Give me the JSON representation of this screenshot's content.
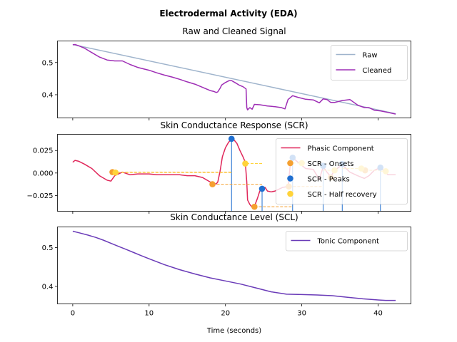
{
  "suptitle": "Electrodermal Activity (EDA)",
  "chart_data": [
    {
      "type": "line",
      "title": "Raw and Cleaned Signal",
      "xlabel": "",
      "ylabel": "",
      "xlim": [
        -2,
        44.3
      ],
      "ylim": [
        0.328,
        0.567
      ],
      "xticks": [
        0,
        10,
        20,
        30,
        40
      ],
      "show_xtick_labels": false,
      "yticks": [
        0.4,
        0.5
      ],
      "ytick_labels": [
        "0.4",
        "0.5"
      ],
      "legend": {
        "placement": "top-right",
        "entries": [
          "Raw",
          "Cleaned"
        ]
      },
      "series": [
        {
          "name": "Raw",
          "color": "#9fb4cc",
          "x": [
            0,
            42.3
          ],
          "y": [
            0.556,
            0.341
          ]
        },
        {
          "name": "Cleaned",
          "color": "#9E2DB5",
          "x": [
            0,
            0.3,
            0.8,
            1.5,
            2.5,
            3.5,
            4.5,
            5.5,
            6.5,
            7.5,
            8.5,
            10,
            11,
            12,
            13,
            14,
            15,
            16,
            17,
            18,
            18.5,
            18.8,
            19,
            19.3,
            19.5,
            20,
            20.5,
            20.8,
            21.3,
            21.8,
            22.3,
            22.7,
            22.8,
            22.9,
            23.2,
            23.5,
            23.8,
            24.5,
            25.5,
            26.5,
            27.3,
            27.8,
            28.2,
            28.8,
            29.5,
            30.5,
            31.5,
            32.3,
            32.8,
            33.3,
            33.8,
            34.3,
            35.3,
            36.3,
            37.3,
            38.2,
            38.8,
            39.5,
            40.3,
            41.3,
            42.3
          ],
          "y": [
            0.555,
            0.556,
            0.552,
            0.545,
            0.531,
            0.517,
            0.508,
            0.505,
            0.505,
            0.494,
            0.485,
            0.476,
            0.468,
            0.461,
            0.455,
            0.448,
            0.44,
            0.433,
            0.423,
            0.413,
            0.41,
            0.407,
            0.409,
            0.42,
            0.43,
            0.438,
            0.444,
            0.444,
            0.437,
            0.43,
            0.425,
            0.418,
            0.36,
            0.353,
            0.36,
            0.355,
            0.37,
            0.369,
            0.365,
            0.363,
            0.36,
            0.356,
            0.385,
            0.397,
            0.392,
            0.386,
            0.384,
            0.375,
            0.387,
            0.385,
            0.376,
            0.376,
            0.382,
            0.385,
            0.368,
            0.36,
            0.36,
            0.352,
            0.35,
            0.345,
            0.34
          ]
        }
      ]
    },
    {
      "type": "line",
      "title": "Skin Conductance Response (SCR)",
      "xlabel": "",
      "ylabel": "",
      "xlim": [
        -2,
        44.3
      ],
      "ylim": [
        -0.0425,
        0.043
      ],
      "xticks": [
        0,
        10,
        20,
        30,
        40
      ],
      "show_xtick_labels": false,
      "yticks": [
        -0.025,
        0.0,
        0.025
      ],
      "ytick_labels": [
        "−0.025",
        "0.000",
        "0.025"
      ],
      "legend": {
        "placement": "top-right",
        "entries": [
          "Phasic Component",
          "SCR - Onsets",
          "SCR - Peaks",
          "SCR - Half recovery"
        ]
      },
      "series": [
        {
          "name": "Phasic Component",
          "color": "#E0275A",
          "x": [
            0,
            0.3,
            0.8,
            1.5,
            2.5,
            3.5,
            4.5,
            5.0,
            5.5,
            6.5,
            7.5,
            8.5,
            10,
            11,
            12,
            13,
            14,
            15,
            16,
            17,
            18,
            18.5,
            18.8,
            19,
            19.3,
            19.6,
            20,
            20.4,
            20.8,
            21.1,
            21.5,
            21.9,
            22.3,
            22.6,
            22.8,
            22.9,
            23.2,
            23.5,
            23.8,
            24.2,
            24.5,
            24.8,
            25.2,
            25.5,
            26,
            26.5,
            27,
            27.5,
            28.2,
            28.5,
            28.8,
            29.5,
            30.5,
            31.5,
            32.3,
            32.8,
            33.3,
            33.8,
            34.3,
            35.3,
            36.3,
            37.3,
            38.2,
            38.8,
            39.5,
            40.3,
            41.3,
            42.3
          ],
          "y": [
            0.012,
            0.014,
            0.013,
            0.01,
            0.005,
            -0.003,
            -0.008,
            -0.009,
            -0.003,
            0.001,
            -0.002,
            -0.001,
            -0.001,
            -0.002,
            -0.002,
            -0.002,
            -0.002,
            -0.003,
            -0.003,
            -0.005,
            -0.01,
            -0.012,
            -0.012,
            -0.01,
            0.002,
            0.018,
            0.028,
            0.034,
            0.038,
            0.037,
            0.033,
            0.025,
            0.018,
            0.012,
            -0.01,
            -0.03,
            -0.035,
            -0.038,
            -0.037,
            -0.028,
            -0.02,
            -0.016,
            -0.016,
            -0.02,
            -0.021,
            -0.02,
            -0.018,
            -0.016,
            -0.015,
            0.01,
            0.017,
            0.012,
            0.005,
            0.004,
            -0.007,
            0.007,
            0.001,
            -0.004,
            0.003,
            0.009,
            0.001,
            -0.003,
            -0.006,
            -0.003,
            0.003,
            0.006,
            -0.002,
            -0.002
          ]
        }
      ],
      "onsets": {
        "name": "SCR - Onsets",
        "color": "#F5A030",
        "x": [
          5.2,
          18.3,
          23.8,
          28.3,
          33.8,
          38.3
        ],
        "y": [
          0.001,
          -0.0125,
          -0.0375,
          -0.015,
          -0.005,
          0.003
        ]
      },
      "peaks": {
        "name": "SCR - Peaks",
        "color": "#1F6FD0",
        "x": [
          20.8,
          24.8,
          28.8,
          32.8,
          35.3,
          40.3
        ],
        "y": [
          0.038,
          -0.0175,
          0.017,
          0.008,
          0.01,
          0.006
        ]
      },
      "half_recovery": {
        "name": "SCR - Half recovery",
        "color": "#FFD33A",
        "x": [
          5.6,
          22.6,
          30.0,
          34.3,
          37.8,
          41.0
        ],
        "y": [
          0.0005,
          0.0105,
          0.011,
          0.003,
          0.005,
          0.002
        ]
      }
    },
    {
      "type": "line",
      "title": "Skin Conductance Level (SCL)",
      "xlabel": "Time (seconds)",
      "ylabel": "",
      "xlim": [
        -2,
        44.3
      ],
      "ylim": [
        0.355,
        0.553
      ],
      "xticks": [
        0,
        10,
        20,
        30,
        40
      ],
      "xtick_labels": [
        "0",
        "10",
        "20",
        "30",
        "40"
      ],
      "show_xtick_labels": true,
      "yticks": [
        0.4,
        0.5
      ],
      "ytick_labels": [
        "0.4",
        "0.5"
      ],
      "legend": {
        "placement": "top-right",
        "entries": [
          "Tonic Component"
        ]
      },
      "series": [
        {
          "name": "Tonic Component",
          "color": "#6A3BB8",
          "x": [
            0,
            1,
            2,
            3,
            4,
            5,
            6,
            7,
            8,
            9,
            10,
            12,
            14,
            16,
            18,
            20,
            22,
            24,
            26,
            28,
            30,
            32,
            34,
            36,
            38,
            40,
            41,
            42.3
          ],
          "y": [
            0.542,
            0.537,
            0.532,
            0.526,
            0.519,
            0.511,
            0.503,
            0.495,
            0.487,
            0.479,
            0.471,
            0.456,
            0.443,
            0.432,
            0.422,
            0.414,
            0.406,
            0.396,
            0.386,
            0.38,
            0.379,
            0.378,
            0.376,
            0.372,
            0.368,
            0.365,
            0.364,
            0.364
          ]
        }
      ]
    }
  ]
}
